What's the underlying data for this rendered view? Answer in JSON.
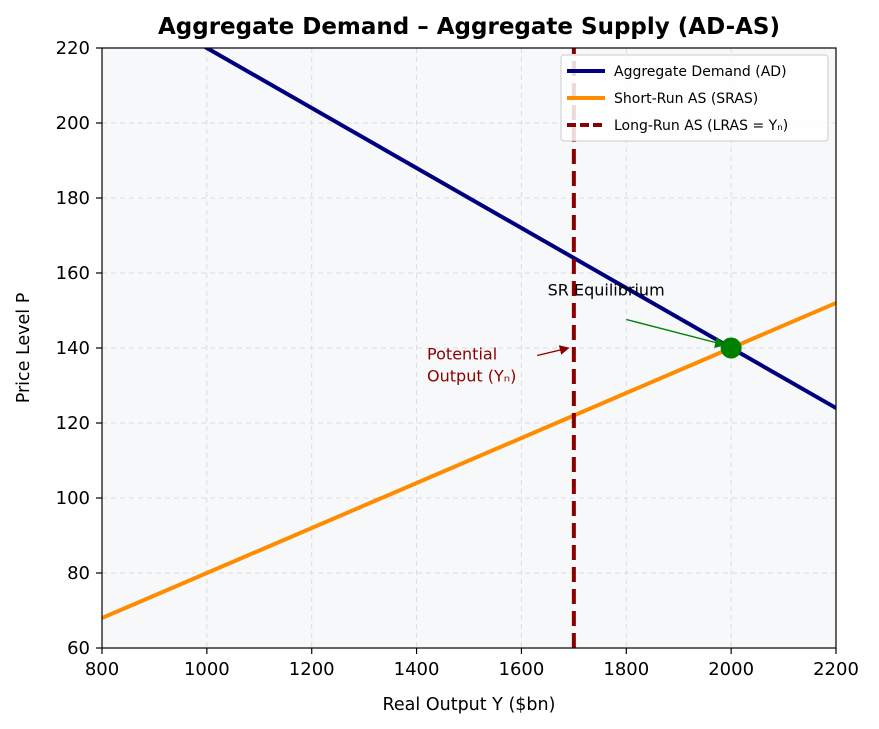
{
  "chart_data": {
    "type": "line",
    "title": "Aggregate Demand – Aggregate Supply (AD-AS)",
    "xlabel": "Real Output Y ($bn)",
    "ylabel": "Price Level P",
    "xlim": [
      800,
      2200
    ],
    "ylim": [
      60,
      220
    ],
    "xticks": [
      800,
      1000,
      1200,
      1400,
      1600,
      1800,
      2000,
      2200
    ],
    "yticks": [
      60,
      80,
      100,
      120,
      140,
      160,
      180,
      200,
      220
    ],
    "grid": true,
    "legend_position": "top-right",
    "background_color": "#f7f8fa",
    "series": [
      {
        "name": "Aggregate Demand (AD)",
        "color": "#00007f",
        "style": "solid",
        "x": [
          1000,
          2200
        ],
        "y": [
          220,
          124
        ]
      },
      {
        "name": "Short-Run AS (SRAS)",
        "color": "#ff8c00",
        "style": "solid",
        "x": [
          800,
          2200
        ],
        "y": [
          68,
          152
        ]
      },
      {
        "name": "Long-Run AS (LRAS = Yₙ)",
        "color": "#8b0000",
        "style": "dashed",
        "x": [
          1700,
          1700
        ],
        "y": [
          60,
          220
        ]
      }
    ],
    "equilibrium_point": {
      "x": 2000,
      "y": 140,
      "color": "#008000"
    },
    "annotations": [
      {
        "text": "SR Equilibrium",
        "color": "#000000",
        "text_at": [
          1650,
          154
        ],
        "arrow_to": [
          2000,
          140
        ],
        "arrow_color": "#008000"
      },
      {
        "text_lines": [
          "Potential",
          "Output (Yₙ)"
        ],
        "color": "#8b0000",
        "text_at": [
          1420,
          137
        ],
        "arrow_from": [
          1630,
          138
        ],
        "arrow_to": [
          1690,
          140
        ],
        "arrow_color": "#8b0000"
      }
    ]
  }
}
